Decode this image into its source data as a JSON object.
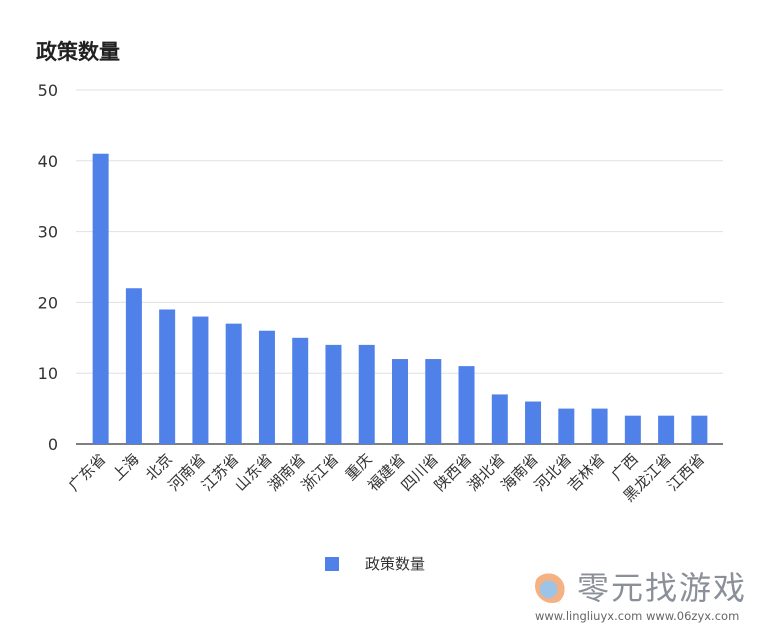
{
  "chart_data": {
    "type": "bar",
    "title": "政策数量",
    "categories": [
      "广东省",
      "上海",
      "北京",
      "河南省",
      "江苏省",
      "山东省",
      "湖南省",
      "浙江省",
      "重庆",
      "福建省",
      "四川省",
      "陕西省",
      "湖北省",
      "海南省",
      "河北省",
      "吉林省",
      "广西",
      "黑龙江省",
      "江西省"
    ],
    "series": [
      {
        "name": "政策数量",
        "values": [
          41,
          22,
          19,
          18,
          17,
          16,
          15,
          14,
          14,
          12,
          12,
          11,
          7,
          6,
          5,
          5,
          4,
          4,
          4
        ]
      }
    ],
    "ylim": [
      0,
      50
    ],
    "yticks": [
      "0",
      "10",
      "20",
      "30",
      "40",
      "50"
    ],
    "grid": true,
    "legend": "bottom",
    "color": "#4f81e8"
  },
  "watermark": {
    "name": "零元找游戏",
    "urls": "www.lingliuyx.com   www.06zyx.com"
  }
}
